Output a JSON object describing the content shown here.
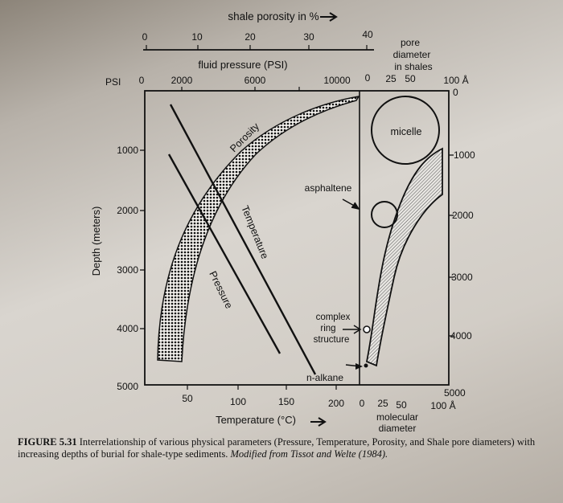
{
  "top_axes": {
    "porosity_title": "shale porosity in %",
    "porosity_ticks": [
      "0",
      "10",
      "20",
      "30",
      "40"
    ],
    "pressure_title": "fluid pressure (PSI)",
    "pressure_unit": "PSI",
    "pressure_ticks": [
      "0",
      "2000",
      "6000",
      "10000"
    ]
  },
  "right_axes": {
    "pore_title_1": "pore",
    "pore_title_2": "diameter",
    "pore_title_3": "in shales",
    "pore_ticks": [
      "0",
      "25",
      "50",
      "100 Å"
    ],
    "pore_zero": "0",
    "molecular_title_1": "molecular",
    "molecular_title_2": "diameter",
    "molecular_ticks": [
      "0",
      "25",
      "50",
      "100 Å"
    ],
    "depth_ticks_right": [
      "1000",
      "2000",
      "3000",
      "4000",
      "5000"
    ]
  },
  "left_axis": {
    "title": "Depth (meters)",
    "ticks": [
      "1000",
      "2000",
      "3000",
      "4000",
      "5000"
    ]
  },
  "bottom_axis": {
    "title": "Temperature (°C)",
    "ticks": [
      "50",
      "100",
      "150",
      "200"
    ]
  },
  "curve_labels": {
    "porosity": "Porosity",
    "temperature": "Temperature",
    "pressure": "Pressure",
    "micelle": "micelle",
    "asphaltene": "asphaltene",
    "complex_1": "complex",
    "complex_2": "ring",
    "complex_3": "structure",
    "nalkane": "n-alkane"
  },
  "caption": {
    "figure": "FIGURE 5.31",
    "text": "Interrelationship of various physical parameters (Pressure, Temperature, Porosity, and Shale pore diameters) with increasing depths of burial for shale-type sediments.",
    "source": "Modified from Tissot and Welte (1984)."
  }
}
